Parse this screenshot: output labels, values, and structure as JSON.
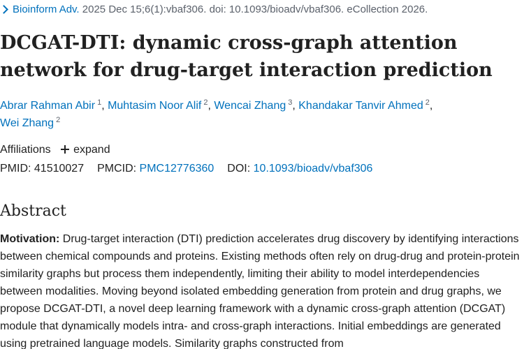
{
  "citation": {
    "journal": "Bioinform Adv.",
    "details": "2025 Dec 15;6(1):vbaf306. doi: 10.1093/bioadv/vbaf306. eCollection 2026."
  },
  "article": {
    "title": "DCGAT-DTI: dynamic cross-graph attention network for drug-target interaction prediction"
  },
  "authors": [
    {
      "name": "Abrar Rahman Abir",
      "aff": "1"
    },
    {
      "name": "Muhtasim Noor Alif",
      "aff": "2"
    },
    {
      "name": "Wencai Zhang",
      "aff": "3"
    },
    {
      "name": "Khandakar Tanvir Ahmed",
      "aff": "2"
    },
    {
      "name": "Wei Zhang",
      "aff": "2"
    }
  ],
  "affiliations": {
    "label": "Affiliations",
    "expand_label": "expand"
  },
  "identifiers": {
    "pmid_label": "PMID:",
    "pmid": "41510027",
    "pmcid_label": "PMCID:",
    "pmcid": "PMC12776360",
    "doi_label": "DOI:",
    "doi": "10.1093/bioadv/vbaf306"
  },
  "abstract": {
    "heading": "Abstract",
    "motivation_label": "Motivation:",
    "motivation_text": " Drug-target interaction (DTI) prediction accelerates drug discovery by identifying interactions between chemical compounds and proteins. Existing methods often rely on drug-drug and protein-protein similarity graphs but process them independently, limiting their ability to model interdependencies between modalities. Moving beyond isolated embedding generation from protein and drug graphs, we propose DCGAT-DTI, a novel deep learning framework with a dynamic cross-graph attention (DCGAT) module that dynamically models intra- and cross-graph interactions. Initial embeddings are generated using pretrained language models. Similarity graphs constructed from"
  },
  "colors": {
    "link": "#0071bc",
    "text": "#212121",
    "muted": "#5b616b"
  }
}
